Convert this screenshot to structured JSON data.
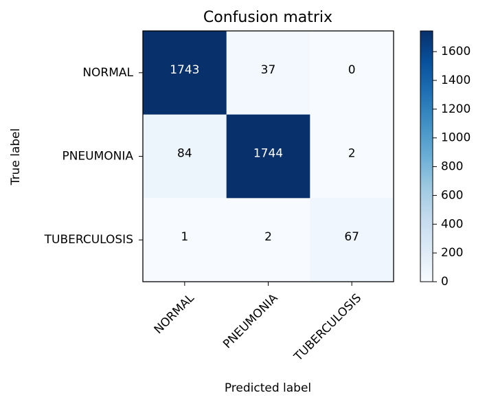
{
  "chart_data": {
    "type": "heatmap",
    "title": "Confusion matrix",
    "xlabel": "Predicted label",
    "ylabel": "True label",
    "x_categories": [
      "NORMAL",
      "PNEUMONIA",
      "TUBERCULOSIS"
    ],
    "y_categories": [
      "NORMAL",
      "PNEUMONIA",
      "TUBERCULOSIS"
    ],
    "values": [
      [
        1743,
        37,
        0
      ],
      [
        84,
        1744,
        2
      ],
      [
        1,
        2,
        67
      ]
    ],
    "colormap": "Blues",
    "colorbar": {
      "min": 0,
      "max": 1744,
      "ticks": [
        0,
        200,
        400,
        600,
        800,
        1000,
        1200,
        1400,
        1600
      ]
    }
  }
}
